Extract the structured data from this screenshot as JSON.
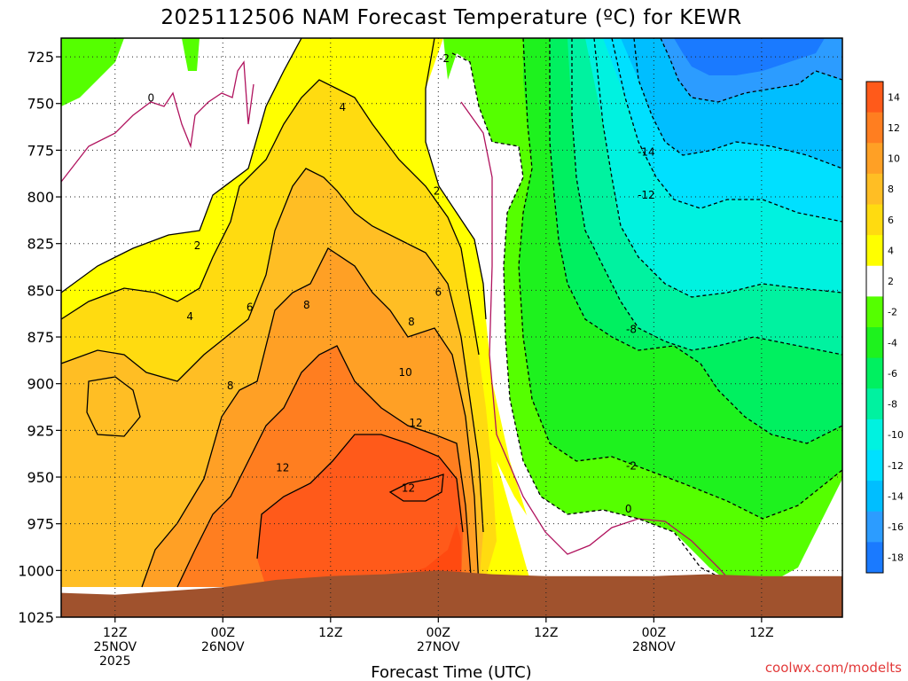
{
  "chart_data": {
    "type": "heatmap",
    "title": "2025112506 NAM Forecast Temperature (ºC) for KEWR",
    "xlabel": "Forecast Time (UTC)",
    "ylabel": "",
    "credit": "coolwx.com/modelts",
    "y_axis": {
      "name": "pressure_hPa",
      "direction": "decreasing-up",
      "range": [
        1025,
        715
      ],
      "ticks": [
        "725",
        "750",
        "775",
        "800",
        "825",
        "850",
        "875",
        "900",
        "925",
        "950",
        "975",
        "1000",
        "1025"
      ]
    },
    "x_axis": {
      "name": "forecast_time_utc",
      "range": [
        "2025-11-25T06:00Z",
        "2025-11-28T21:00Z"
      ],
      "ticks": [
        {
          "time": "2025-11-25T12:00Z",
          "lines": [
            "12Z",
            "25NOV",
            "2025"
          ]
        },
        {
          "time": "2025-11-26T00:00Z",
          "lines": [
            "00Z",
            "26NOV"
          ]
        },
        {
          "time": "2025-11-26T12:00Z",
          "lines": [
            "12Z"
          ]
        },
        {
          "time": "2025-11-27T00:00Z",
          "lines": [
            "00Z",
            "27NOV"
          ]
        },
        {
          "time": "2025-11-27T12:00Z",
          "lines": [
            "12Z"
          ]
        },
        {
          "time": "2025-11-28T00:00Z",
          "lines": [
            "00Z",
            "28NOV"
          ]
        },
        {
          "time": "2025-11-28T12:00Z",
          "lines": [
            "12Z"
          ]
        }
      ]
    },
    "grid": true,
    "colorbar": {
      "placement": "right",
      "bins": [
        {
          "label": "14",
          "color": "#ff5a1a"
        },
        {
          "label": "12",
          "color": "#ff7e20"
        },
        {
          "label": "10",
          "color": "#ffa025"
        },
        {
          "label": "8",
          "color": "#ffbe24"
        },
        {
          "label": "6",
          "color": "#ffdb10"
        },
        {
          "label": "4",
          "color": "#ffff00"
        },
        {
          "label": "2",
          "color": "#ffffff"
        },
        {
          "label": "-2",
          "color": "#55ff00"
        },
        {
          "label": "-4",
          "color": "#1ef21e"
        },
        {
          "label": "-6",
          "color": "#00f060"
        },
        {
          "label": "-8",
          "color": "#00f2a0"
        },
        {
          "label": "-10",
          "color": "#00f2e0"
        },
        {
          "label": "-12",
          "color": "#00e0ff"
        },
        {
          "label": "-14",
          "color": "#00beff"
        },
        {
          "label": "-16",
          "color": "#2c9cff"
        },
        {
          "label": "-18",
          "color": "#1a7aff"
        }
      ]
    },
    "contour_labels": [
      {
        "text": "-2",
        "time": "2025-11-27T00:40Z",
        "pressure": 726
      },
      {
        "text": "0",
        "time": "2025-11-25T16:00Z",
        "pressure": 747
      },
      {
        "text": "4",
        "time": "2025-11-26T13:20Z",
        "pressure": 752
      },
      {
        "text": "-14",
        "time": "2025-11-27T23:10Z",
        "pressure": 776
      },
      {
        "text": "2",
        "time": "2025-11-26T23:50Z",
        "pressure": 797
      },
      {
        "text": "-12",
        "time": "2025-11-27T23:10Z",
        "pressure": 799
      },
      {
        "text": "2",
        "time": "2025-11-25T21:10Z",
        "pressure": 826
      },
      {
        "text": "6",
        "time": "2025-11-27T00:00Z",
        "pressure": 851
      },
      {
        "text": "8",
        "time": "2025-11-26T09:20Z",
        "pressure": 858
      },
      {
        "text": "6",
        "time": "2025-11-26T03:00Z",
        "pressure": 859
      },
      {
        "text": "4",
        "time": "2025-11-25T20:20Z",
        "pressure": 864
      },
      {
        "text": "8",
        "time": "2025-11-26T21:00Z",
        "pressure": 867
      },
      {
        "text": "-8",
        "time": "2025-11-27T21:30Z",
        "pressure": 871
      },
      {
        "text": "10",
        "time": "2025-11-26T20:20Z",
        "pressure": 894
      },
      {
        "text": "8",
        "time": "2025-11-26T00:50Z",
        "pressure": 901
      },
      {
        "text": "12",
        "time": "2025-11-26T21:30Z",
        "pressure": 921
      },
      {
        "text": "12",
        "time": "2025-11-26T06:40Z",
        "pressure": 945
      },
      {
        "text": "-2",
        "time": "2025-11-27T21:30Z",
        "pressure": 944
      },
      {
        "text": "12",
        "time": "2025-11-26T20:40Z",
        "pressure": 956
      },
      {
        "text": "0",
        "time": "2025-11-27T21:10Z",
        "pressure": 967
      }
    ],
    "surface_pressure": {
      "color": "#a0522d",
      "times": [
        "2025-11-25T06:00Z",
        "2025-11-25T12:00Z",
        "2025-11-25T18:00Z",
        "2025-11-26T00:00Z",
        "2025-11-26T06:00Z",
        "2025-11-26T12:00Z",
        "2025-11-26T18:00Z",
        "2025-11-27T00:00Z",
        "2025-11-27T06:00Z",
        "2025-11-27T12:00Z",
        "2025-11-27T18:00Z",
        "2025-11-28T00:00Z",
        "2025-11-28T06:00Z",
        "2025-11-28T12:00Z",
        "2025-11-28T21:00Z"
      ],
      "pressures": [
        1012,
        1013,
        1011,
        1009,
        1005,
        1003,
        1002,
        1000,
        1002,
        1003,
        1003,
        1003,
        1002,
        1003,
        1003
      ]
    }
  }
}
